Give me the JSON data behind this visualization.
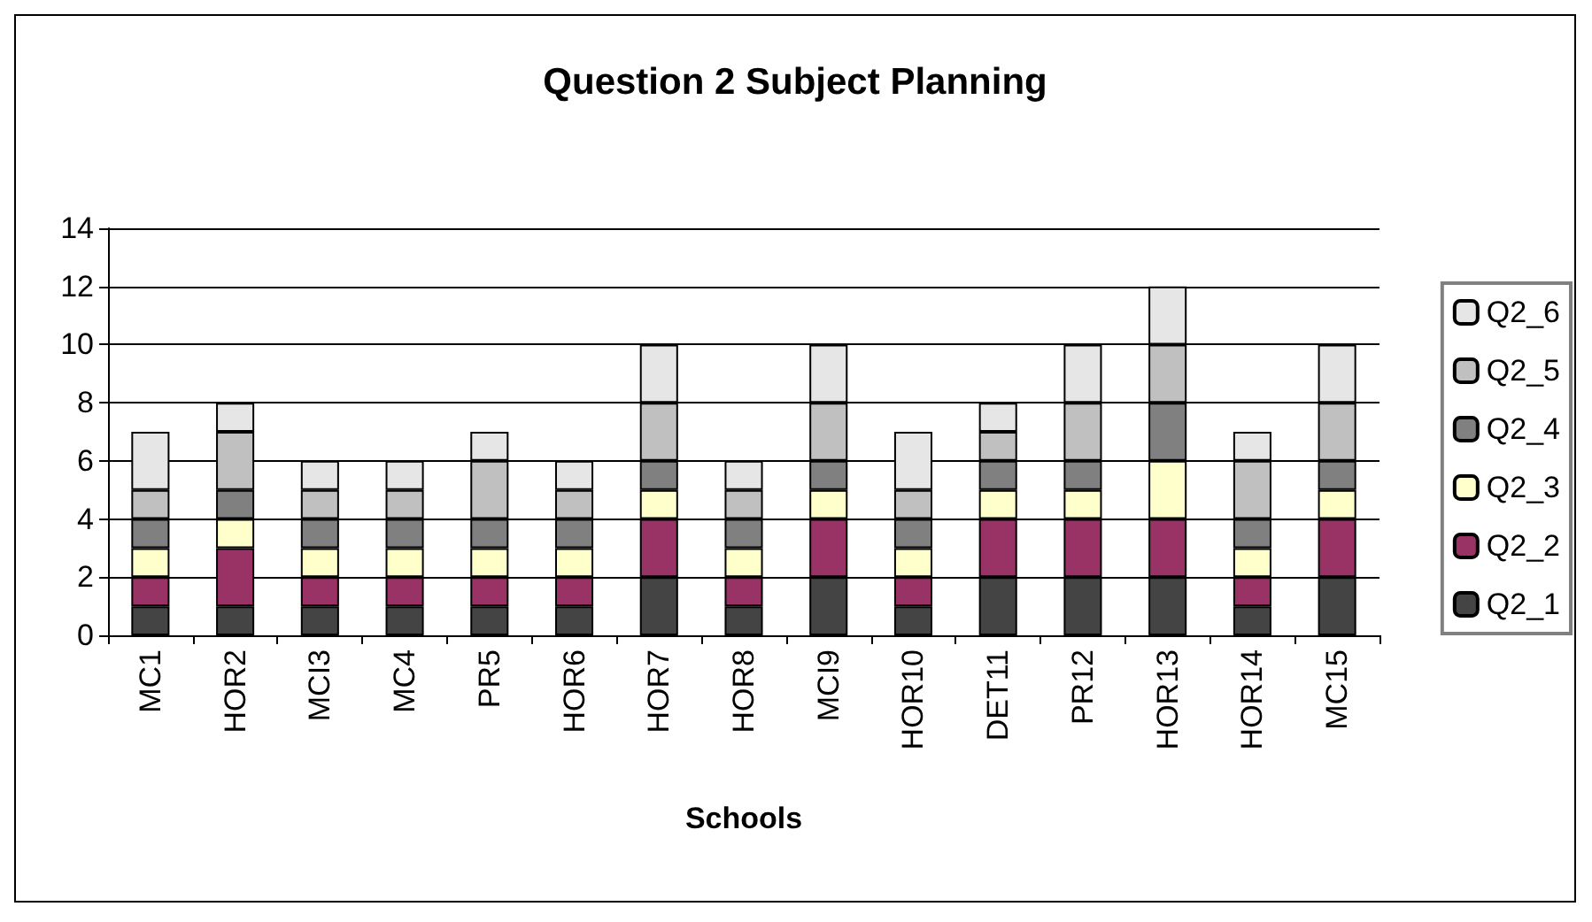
{
  "chart_data": {
    "type": "bar",
    "title": "Question 2 Subject Planning",
    "xlabel": "Schools",
    "stacked": true,
    "categories": [
      "MC1",
      "HOR2",
      "MCI3",
      "MC4",
      "PR5",
      "HOR6",
      "HOR7",
      "HOR8",
      "MCI9",
      "HOR10",
      "DET11",
      "PR12",
      "HOR13",
      "HOR14",
      "MC15"
    ],
    "series": [
      {
        "name": "Q2_1",
        "color": "#444444",
        "values": [
          1,
          1,
          1,
          1,
          1,
          1,
          2,
          1,
          2,
          1,
          2,
          2,
          2,
          1,
          2
        ]
      },
      {
        "name": "Q2_2",
        "color": "#993366",
        "values": [
          1,
          2,
          1,
          1,
          1,
          1,
          2,
          1,
          2,
          1,
          2,
          2,
          2,
          1,
          2
        ]
      },
      {
        "name": "Q2_3",
        "color": "#ffffcc",
        "values": [
          1,
          1,
          1,
          1,
          1,
          1,
          1,
          1,
          1,
          1,
          1,
          1,
          2,
          1,
          1
        ]
      },
      {
        "name": "Q2_4",
        "color": "#808080",
        "values": [
          1,
          1,
          1,
          1,
          1,
          1,
          1,
          1,
          1,
          1,
          1,
          1,
          2,
          1,
          1
        ]
      },
      {
        "name": "Q2_5",
        "color": "#c0c0c0",
        "values": [
          1,
          2,
          1,
          1,
          2,
          1,
          2,
          1,
          2,
          1,
          1,
          2,
          2,
          2,
          2
        ]
      },
      {
        "name": "Q2_6",
        "color": "#e6e6e6",
        "values": [
          2,
          1,
          1,
          1,
          1,
          1,
          2,
          1,
          2,
          2,
          1,
          2,
          2,
          1,
          2
        ]
      }
    ],
    "ylim": [
      0,
      14
    ],
    "yticks": [
      0,
      2,
      4,
      6,
      8,
      10,
      12,
      14
    ],
    "grid": "y",
    "legend": "right"
  }
}
